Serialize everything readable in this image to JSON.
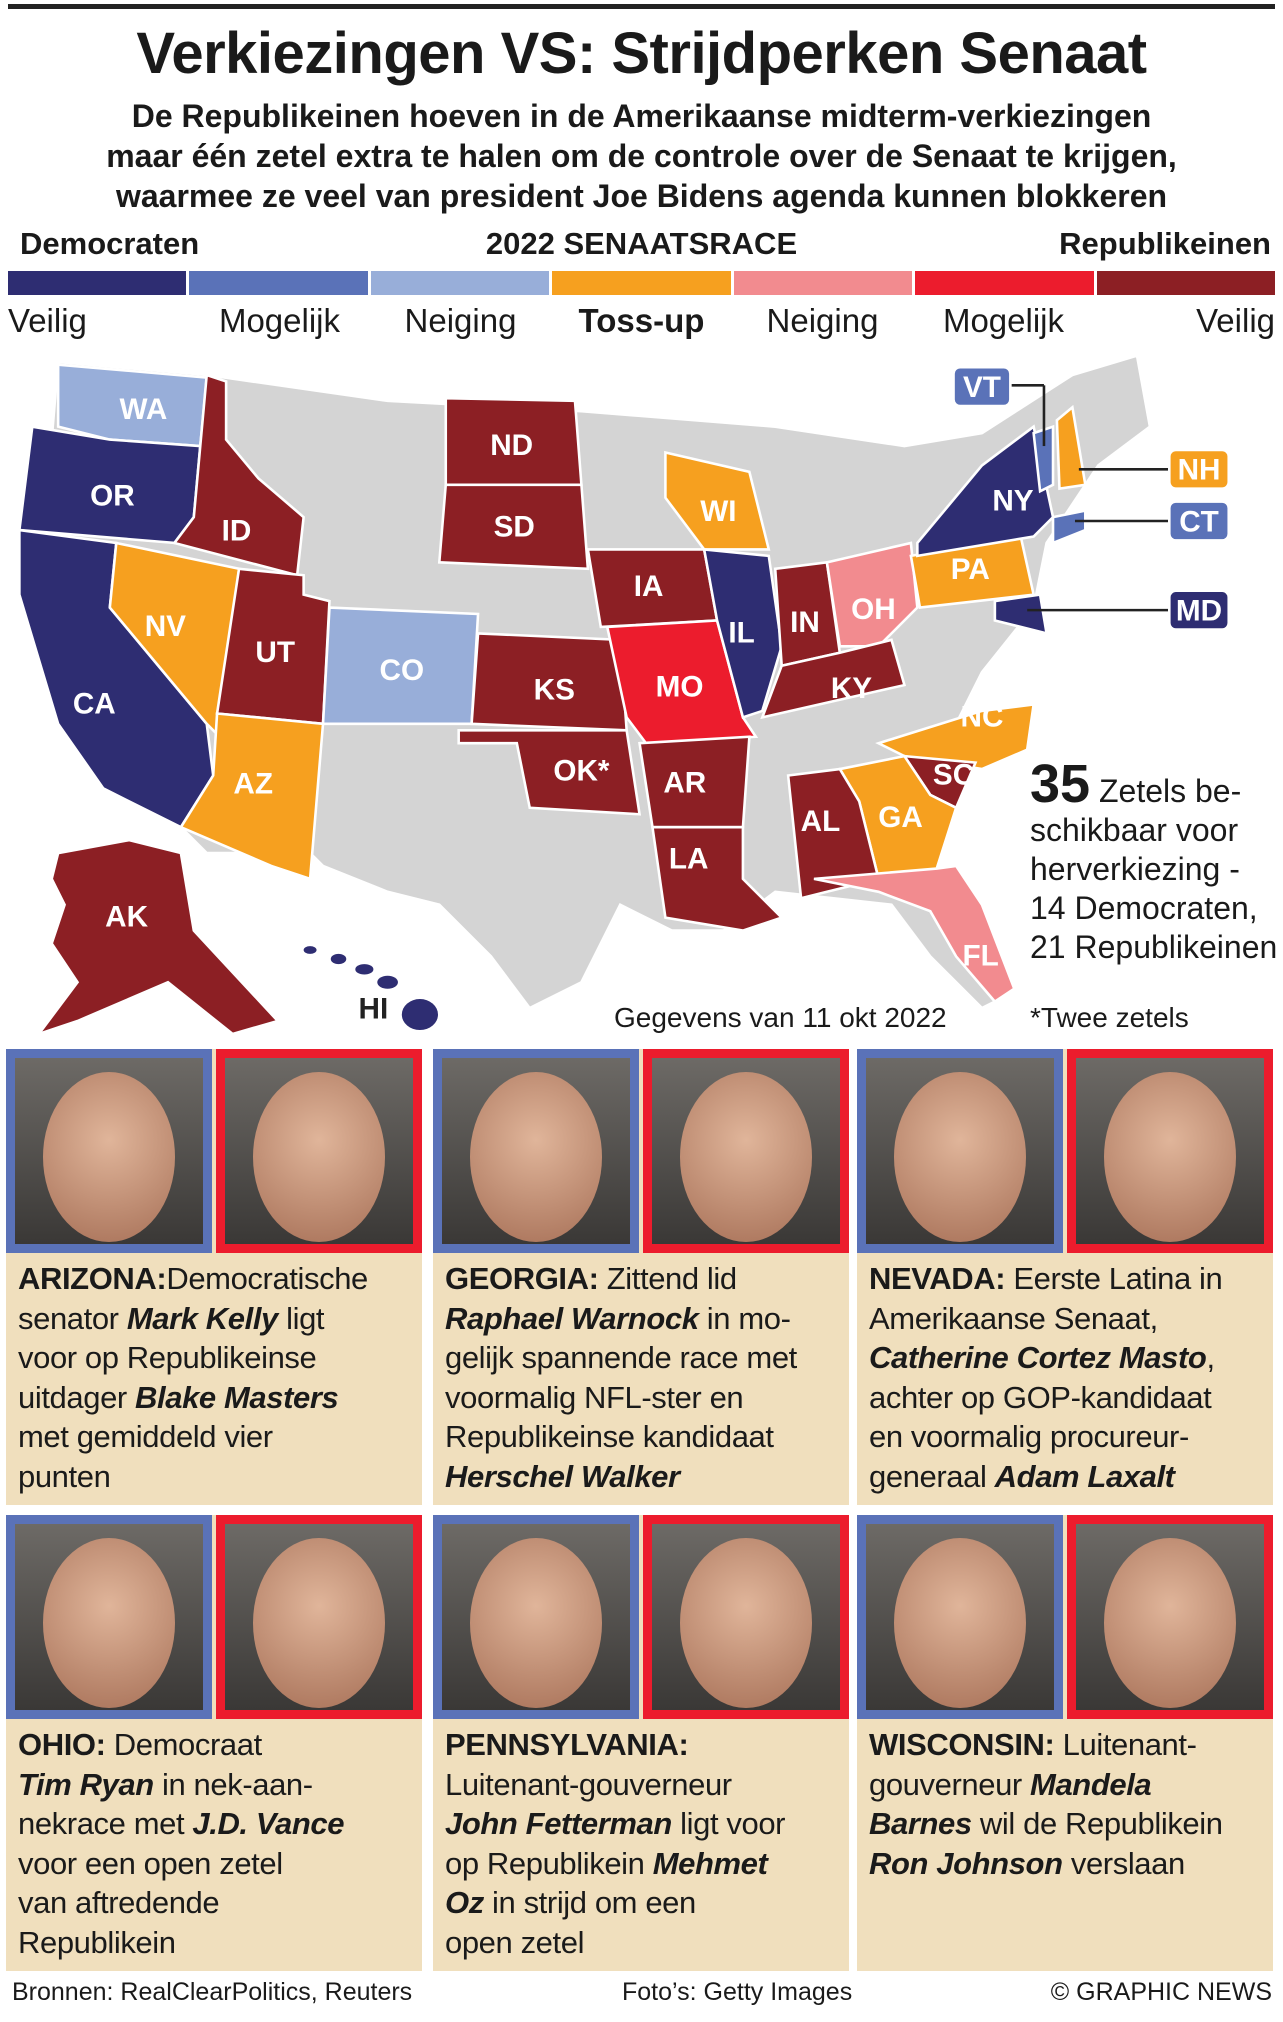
{
  "title": "Verkiezingen VS: Strijdperken Senaat",
  "subtitle": [
    "De Republikeinen hoeven in de Amerikaanse midterm-verkiezingen",
    "maar één zetel extra te halen om de controle over de Senaat te krijgen,",
    "waarmee ze veel van president Joe Bidens agenda kunnen blokkeren"
  ],
  "legend": {
    "left": "Democraten",
    "center": "2022 SENAATSRACE",
    "right": "Republikeinen",
    "categories": [
      {
        "label": "Veilig",
        "color": "#2e2d72"
      },
      {
        "label": "Mogelijk",
        "color": "#5a72b8"
      },
      {
        "label": "Neiging",
        "color": "#98aed9"
      },
      {
        "label": "Toss-up",
        "color": "#f6a01f"
      },
      {
        "label": "Neiging",
        "color": "#f28b8f"
      },
      {
        "label": "Mogelijk",
        "color": "#ec1c2d"
      },
      {
        "label": "Veilig",
        "color": "#8c1f24"
      }
    ]
  },
  "map": {
    "states": {
      "WA": "WA",
      "OR": "OR",
      "CA": "CA",
      "NV": "NV",
      "ID": "ID",
      "UT": "UT",
      "AZ": "AZ",
      "CO": "CO",
      "ND": "ND",
      "SD": "SD",
      "KS": "KS",
      "OK": "OK*",
      "IA": "IA",
      "MO": "MO",
      "AR": "AR",
      "LA": "LA",
      "WI": "WI",
      "IL": "IL",
      "IN": "IN",
      "OH": "OH",
      "KY": "KY",
      "PA": "PA",
      "NY": "NY",
      "VT": "VT",
      "NH": "NH",
      "CT": "CT",
      "MD": "MD",
      "NC": "NC",
      "SC": "SC",
      "GA": "GA",
      "AL": "AL",
      "FL": "FL",
      "AK": "AK",
      "HI": "HI"
    },
    "seats_number": "35",
    "seats_text": [
      "Zetels be-",
      "schikbaar voor",
      "herverkiezing -",
      "14 Democraten,",
      "21 Republikeinen"
    ],
    "date_note": "Gegevens van 11 okt 2022",
    "footnote": "*Twee zetels"
  },
  "races": [
    {
      "state": "ARIZONA:",
      "lines": [
        [
          [
            "st",
            "ARIZONA:"
          ],
          [
            "",
            "Democratische"
          ]
        ],
        [
          [
            "",
            "senator "
          ],
          [
            "nm",
            "Mark Kelly"
          ],
          [
            "",
            " ligt"
          ]
        ],
        [
          [
            "",
            "voor op Republikeinse"
          ]
        ],
        [
          [
            "",
            "uitdager "
          ],
          [
            "nm",
            "Blake Masters"
          ]
        ],
        [
          [
            "",
            "met gemiddeld vier"
          ]
        ],
        [
          [
            "",
            "punten"
          ]
        ]
      ]
    },
    {
      "state": "GEORGIA:",
      "lines": [
        [
          [
            "st",
            "GEORGIA:"
          ],
          [
            "",
            " Zittend lid"
          ]
        ],
        [
          [
            "nm",
            "Raphael Warnock"
          ],
          [
            "",
            " in mo-"
          ]
        ],
        [
          [
            "",
            "gelijk spannende race met"
          ]
        ],
        [
          [
            "",
            "voormalig NFL-ster en"
          ]
        ],
        [
          [
            "",
            "Republikeinse kandidaat"
          ]
        ],
        [
          [
            "nm",
            "Herschel Walker"
          ]
        ]
      ]
    },
    {
      "state": "NEVADA:",
      "lines": [
        [
          [
            "st",
            "NEVADA:"
          ],
          [
            "",
            " Eerste Latina in"
          ]
        ],
        [
          [
            "",
            "Amerikaanse Senaat,"
          ]
        ],
        [
          [
            "nm",
            "Catherine Cortez Masto"
          ],
          [
            "",
            ","
          ]
        ],
        [
          [
            "",
            "achter op GOP-kandidaat"
          ]
        ],
        [
          [
            "",
            "en voormalig procureur-"
          ]
        ],
        [
          [
            "",
            "generaal "
          ],
          [
            "nm",
            "Adam Laxalt"
          ]
        ]
      ]
    },
    {
      "state": "OHIO:",
      "lines": [
        [
          [
            "st",
            "OHIO:"
          ],
          [
            "",
            " Democraat"
          ]
        ],
        [
          [
            "nm",
            "Tim Ryan"
          ],
          [
            "",
            " in nek-aan-"
          ]
        ],
        [
          [
            "",
            "nekrace met "
          ],
          [
            "nm",
            "J.D. Vance"
          ]
        ],
        [
          [
            "",
            "voor een open zetel"
          ]
        ],
        [
          [
            "",
            "van aftredende"
          ]
        ],
        [
          [
            "",
            "Republikein"
          ]
        ]
      ]
    },
    {
      "state": "PENNSYLVANIA:",
      "lines": [
        [
          [
            "st",
            "PENNSYLVANIA:"
          ]
        ],
        [
          [
            "",
            "Luitenant-gouverneur"
          ]
        ],
        [
          [
            "nm",
            "John Fetterman"
          ],
          [
            "",
            " ligt voor"
          ]
        ],
        [
          [
            "",
            "op Republikein "
          ],
          [
            "nm",
            "Mehmet"
          ]
        ],
        [
          [
            "nm",
            "Oz"
          ],
          [
            "",
            " in strijd om een"
          ]
        ],
        [
          [
            "",
            "open zetel"
          ]
        ]
      ]
    },
    {
      "state": "WISCONSIN:",
      "lines": [
        [
          [
            "st",
            "WISCONSIN:"
          ],
          [
            "",
            " Luitenant-"
          ]
        ],
        [
          [
            "",
            "gouverneur "
          ],
          [
            "nm",
            "Mandela"
          ]
        ],
        [
          [
            "nm",
            "Barnes"
          ],
          [
            "",
            " wil de Republikein"
          ]
        ],
        [
          [
            "nm",
            "Ron Johnson"
          ],
          [
            "",
            " verslaan"
          ]
        ]
      ]
    }
  ],
  "footer": {
    "sources": "Bronnen: RealClearPolitics, Reuters",
    "photos": "Foto’s: Getty Images",
    "copyright": "© GRAPHIC NEWS"
  }
}
